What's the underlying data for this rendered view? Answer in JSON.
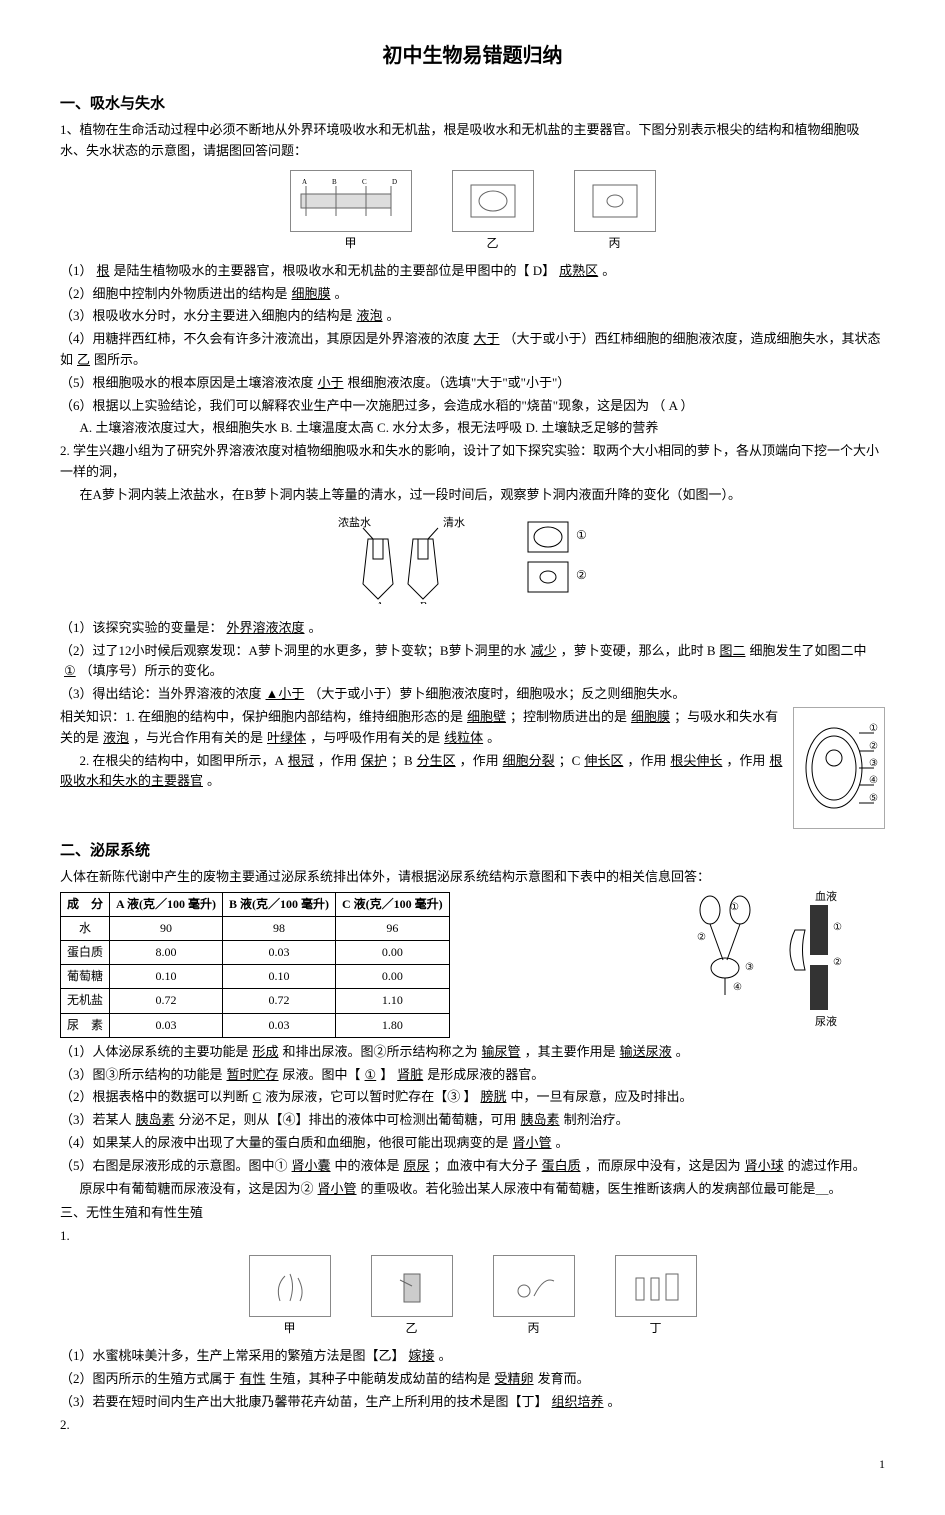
{
  "title": "初中生物易错题归纳",
  "s1": {
    "hdr": "一、吸水与失水",
    "q1_intro": "1、植物在生命活动过程中必须不断地从外界环境吸收水和无机盐，根是吸收水和无机盐的主要器官。下图分别表示根尖的结构和植物细胞吸水、失水状态的示意图，请据图回答问题：",
    "fig1_labels": {
      "a": "甲",
      "b": "乙",
      "c": "丙"
    },
    "q1_1_pre": "（1）",
    "q1_1_a1": "根",
    "q1_1_mid": "是陆生植物吸水的主要器官，根吸收水和无机盐的主要部位是甲图中的【 D】",
    "q1_1_a2": "成熟区",
    "q1_1_end": "。",
    "q1_2_pre": "（2）细胞中控制内外物质进出的结构是",
    "q1_2_a": "细胞膜",
    "q1_2_end": "。",
    "q1_3_pre": "（3）根吸收水分时，水分主要进入细胞内的结构是",
    "q1_3_a": "液泡",
    "q1_3_end": "。",
    "q1_4_pre": "（4）用糖拌西红柿，不久会有许多汁液流出，其原因是外界溶液的浓度",
    "q1_4_a1": "大于",
    "q1_4_mid": "（大于或小于）西红柿细胞的细胞液浓度，造成细胞失水，其状态如",
    "q1_4_a2": "乙",
    "q1_4_end": "图所示。",
    "q1_5_pre": "（5）根细胞吸水的根本原因是土壤溶液浓度",
    "q1_5_a": "小于",
    "q1_5_end": "根细胞液浓度。（选填\"大于\"或\"小于\"）",
    "q1_6": "（6）根据以上实验结论，我们可以解释农业生产中一次施肥过多，会造成水稻的\"烧苗\"现象，这是因为   （ A  ）",
    "q1_6_opts": "A. 土壤溶液浓度过大，根细胞失水   B. 土壤温度太高      C. 水分太多，根无法呼吸   D. 土壤缺乏足够的营养",
    "q2_intro": "2. 学生兴趣小组为了研究外界溶液浓度对植物细胞吸水和失水的影响，设计了如下探究实验：取两个大小相同的萝卜，各从顶端向下挖一个大小一样的洞，",
    "q2_intro2": "在A萝卜洞内装上浓盐水，在B萝卜洞内装上等量的清水，过一段时间后，观察萝卜洞内液面升降的变化（如图一）。",
    "q2_fig_l": "浓盐水",
    "q2_fig_r": "清水",
    "q2_fig_a": "A",
    "q2_fig_b": "B",
    "q2_1_pre": "（1）该探究实验的变量是：",
    "q2_1_a": "外界溶液浓度",
    "q2_1_end": "。",
    "q2_2_pre": "（2）过了12小时候后观察发现：A萝卜洞里的水更多，萝卜变软；B萝卜洞里的水",
    "q2_2_a1": "减少",
    "q2_2_mid": "，萝卜变硬，那么，此时 B",
    "q2_2_a2": "图二",
    "q2_2_mid2": "细胞发生了如图二中",
    "q2_2_a3": "①",
    "q2_2_end": "（填序号）所示的变化。",
    "q2_3_pre": "（3）得出结论：当外界溶液的浓度",
    "q2_3_a": "▲小于",
    "q2_3_end": "（大于或小于）萝卜细胞液浓度时，细胞吸水；反之则细胞失水。",
    "rk_pre": "相关知识：1. 在细胞的结构中，保护细胞内部结构，维持细胞形态的是",
    "rk_a1": "细胞壁",
    "rk_mid1": "；控制物质进出的是",
    "rk_a2": "细胞膜",
    "rk_mid2": "；与吸水和失水有关的是",
    "rk_a3": "液泡",
    "rk_mid3": "，与光合作用有关的是",
    "rk_a4": "叶绿体",
    "rk_mid4": "，与呼吸作用有关的是",
    "rk_a5": "线粒体",
    "rk_end": "。",
    "rk2_pre": "2. 在根尖的结构中，如图甲所示，A",
    "rk2_a1": "根冠",
    "rk2_mid1": "，作用",
    "rk2_a2": "保护",
    "rk2_mid2": "；B",
    "rk2_a3": "分生区",
    "rk2_mid3": "，作用",
    "rk2_a4": "细胞分裂",
    "rk2_mid4": "；C",
    "rk2_a5": "伸长区",
    "rk2_mid5": "，作用",
    "rk2_a6": "根尖伸长",
    "rk2_mid6": "，作用",
    "rk2_a7": "根吸收水和失水的主要器官",
    "rk2_end": "。"
  },
  "s2": {
    "hdr": "二、泌尿系统",
    "intro": "人体在新陈代谢中产生的废物主要通过泌尿系统排出体外，请根据泌尿系统结构示意图和下表中的相关信息回答：",
    "table": {
      "columns": [
        "成　分",
        "A 液(克／100 毫升)",
        "B 液(克／100 毫升)",
        "C 液(克／100 毫升)"
      ],
      "rows": [
        [
          "水",
          "90",
          "98",
          "96"
        ],
        [
          "蛋白质",
          "8.00",
          "0.03",
          "0.00"
        ],
        [
          "葡萄糖",
          "0.10",
          "0.10",
          "0.00"
        ],
        [
          "无机盐",
          "0.72",
          "0.72",
          "1.10"
        ],
        [
          "尿　素",
          "0.03",
          "0.03",
          "1.80"
        ]
      ]
    },
    "fig_labels": {
      "top": "血液",
      "bottom": "尿液"
    },
    "t1_pre": "（1）人体泌尿系统的主要功能是",
    "t1_a1": "形成",
    "t1_mid": "和排出尿液。图②所示结构称之为",
    "t1_a2": "输尿管",
    "t1_mid2": "，其主要作用是",
    "t1_a3": "输送尿液",
    "t1_end": "。",
    "t1b_pre": "（3）图③所示结构的功能是",
    "t1b_a1": "暂时贮存",
    "t1b_mid": "尿液。图中【",
    "t1b_a2": "①",
    "t1b_mid2": "】",
    "t1b_a3": "肾脏",
    "t1b_end": "是形成尿液的器官。",
    "t2_pre": "（2）根据表格中的数据可以判断",
    "t2_a1": "C",
    "t2_mid": "液为尿液，它可以暂时贮存在【③ 】",
    "t2_a2": "膀胱",
    "t2_end": "中，一旦有尿意，应及时排出。",
    "t3_pre": "（3）若某人",
    "t3_a1": "胰岛素",
    "t3_mid": "分泌不足，则从【④】排出的液体中可检测出葡萄糖，可用",
    "t3_a2": "胰岛素",
    "t3_end": "制剂治疗。",
    "t4_pre": "（4）如果某人的尿液中出现了大量的蛋白质和血细胞，他很可能出现病变的是",
    "t4_a": "肾小管",
    "t4_end": "。",
    "t5_pre": "（5）右图是尿液形成的示意图。图中①",
    "t5_a1": "肾小囊",
    "t5_mid": "中的液体是",
    "t5_a2": "原尿",
    "t5_mid2": "；血液中有大分子",
    "t5_a3": "蛋白质",
    "t5_mid3": "，而原尿中没有，这是因为",
    "t5_a4": "肾小球",
    "t5_end": "的滤过作用。",
    "t6_pre": "原尿中有葡萄糖而尿液没有，这是因为②",
    "t6_a1": "肾小管",
    "t6_end": "的重吸收。若化验出某人尿液中有葡萄糖，医生推断该病人的发病部位最可能是＿。"
  },
  "s3": {
    "hdr": "三、无性生殖和有性生殖",
    "n1": "1.",
    "fig_labels": {
      "a": "甲",
      "b": "乙",
      "c": "丙",
      "d": "丁"
    },
    "t1_pre": "（1）水蜜桃味美汁多，生产上常采用的繁殖方法是图【乙】",
    "t1_a": "嫁接",
    "t1_end": "。",
    "t2_pre": "（2）图丙所示的生殖方式属于",
    "t2_a1": "有性",
    "t2_mid": "生殖，其种子中能萌发成幼苗的结构是",
    "t2_a2": "受精卵",
    "t2_end": "发育而。",
    "t3_pre": "（3）若要在短时间内生产出大批康乃馨带花卉幼苗，生产上所利用的技术是图【丁】",
    "t3_a": "组织培养",
    "t3_end": "。",
    "n2": "2."
  },
  "page_num": "1"
}
